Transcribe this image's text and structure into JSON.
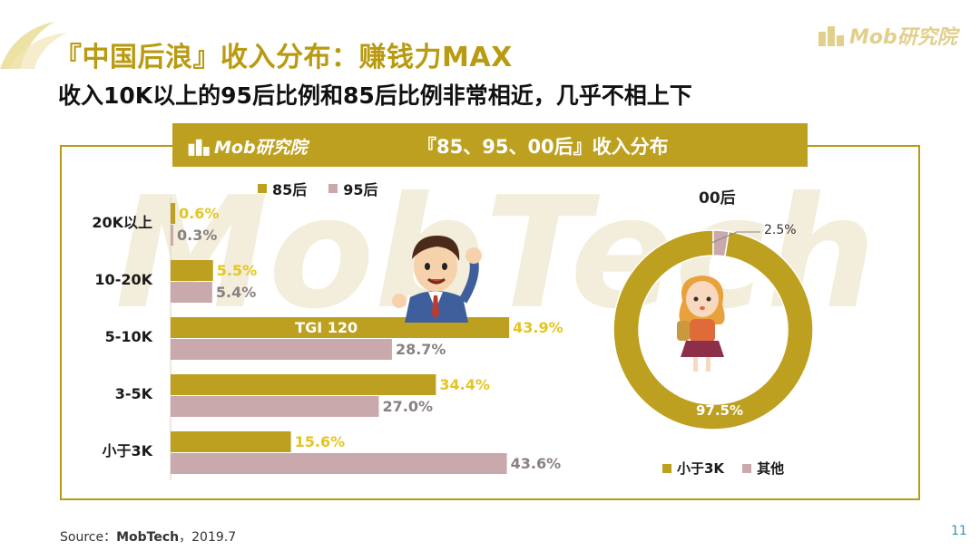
{
  "header": {
    "title": "『中国后浪』收入分布：赚钱力MAX",
    "subtitle": "收入10K以上的95后比例和85后比例非常相近，几乎不相上下",
    "brand_text": "Mob研究院"
  },
  "panel": {
    "title": "『85、95、00后』收入分布",
    "brand_text": "Mob研究院",
    "watermark_text": "MobTech"
  },
  "colors": {
    "accent": "#bda020",
    "series_85": "#bda020",
    "series_95": "#c9a9ac",
    "label_85": "#e4c520",
    "label_95": "#8a8080",
    "other": "#c9a9ac"
  },
  "chart_data": [
    {
      "type": "bar",
      "orientation": "horizontal",
      "categories": [
        "20K以上",
        "10-20K",
        "5-10K",
        "3-5K",
        "小于3K"
      ],
      "series": [
        {
          "name": "85后",
          "values": [
            0.6,
            5.5,
            43.9,
            34.4,
            15.6
          ],
          "labels": [
            "0.6%",
            "5.5%",
            "43.9%",
            "34.4%",
            "15.6%"
          ]
        },
        {
          "name": "95后",
          "values": [
            0.3,
            5.4,
            28.7,
            27.0,
            43.6
          ],
          "labels": [
            "0.3%",
            "5.4%",
            "28.7%",
            "27.0%",
            "43.6%"
          ]
        }
      ],
      "annotation": {
        "category": "5-10K",
        "text": "TGI 120"
      },
      "legend": "top",
      "grid": false
    },
    {
      "type": "pie",
      "donut": true,
      "title": "00后",
      "slices": [
        {
          "name": "小于3K",
          "value": 97.5,
          "label": "97.5%"
        },
        {
          "name": "其他",
          "value": 2.5,
          "label": "2.5%"
        }
      ],
      "legend": "bottom"
    }
  ],
  "footer": {
    "source_prefix": "Source：",
    "source_name": "MobTech",
    "source_suffix": "，2019.7",
    "page_number": "11"
  }
}
